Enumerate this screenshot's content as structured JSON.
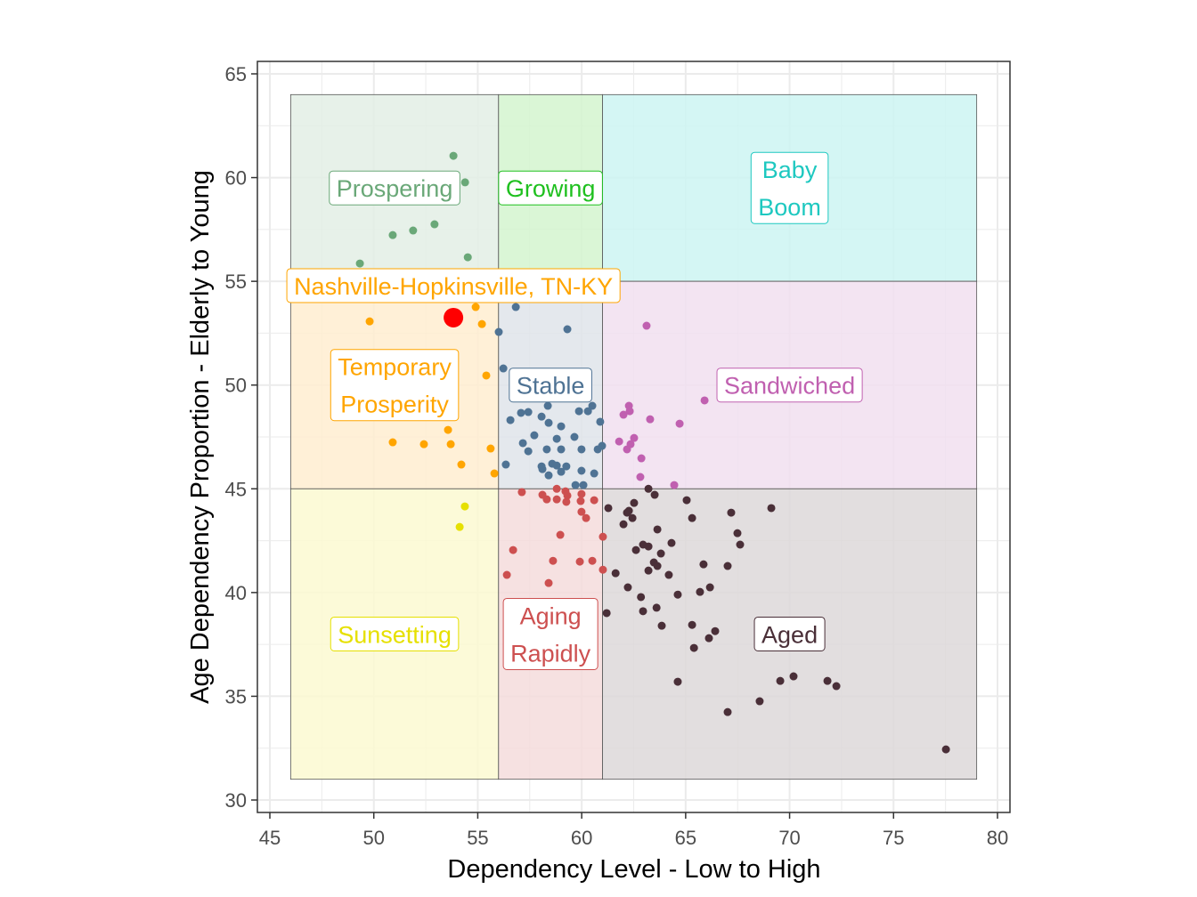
{
  "chart_data": {
    "type": "scatter",
    "xlabel": "Dependency Level - Low to High",
    "ylabel": "Age Dependency Proportion - Elderly to Young",
    "xlim": [
      44.4,
      80.6
    ],
    "ylim": [
      29.4,
      65.6
    ],
    "xticks": [
      45,
      50,
      55,
      60,
      65,
      70,
      75,
      80
    ],
    "yticks": [
      30,
      35,
      40,
      45,
      50,
      55,
      60,
      65
    ],
    "grid": true,
    "regions": [
      {
        "name": "Prospering",
        "x": [
          46,
          56
        ],
        "y": [
          55,
          64
        ],
        "fill": "#e3eee5",
        "color": "#6aa878",
        "label_lines": [
          "Prospering"
        ],
        "label_at": [
          51,
          59.5
        ]
      },
      {
        "name": "Growing",
        "x": [
          56,
          61
        ],
        "y": [
          55,
          64
        ],
        "fill": "#d4f4cf",
        "color": "#1fc01f",
        "label_lines": [
          "Growing"
        ],
        "label_at": [
          58.5,
          59.5
        ]
      },
      {
        "name": "Baby Boom",
        "x": [
          61,
          79
        ],
        "y": [
          55,
          64
        ],
        "fill": "#cdf4f2",
        "color": "#1ec8c0",
        "label_lines": [
          "Baby",
          "Boom"
        ],
        "label_at": [
          70,
          59.5
        ]
      },
      {
        "name": "Temporary Prosperity",
        "x": [
          46,
          56
        ],
        "y": [
          45,
          55
        ],
        "fill": "#ffedd0",
        "color": "#ffa500",
        "label_lines": [
          "Temporary",
          "Prosperity"
        ],
        "label_at": [
          51,
          50
        ]
      },
      {
        "name": "Stable",
        "x": [
          56,
          61
        ],
        "y": [
          45,
          55
        ],
        "fill": "#dfe4ea",
        "color": "#4f7394",
        "label_lines": [
          "Stable"
        ],
        "label_at": [
          58.5,
          50
        ]
      },
      {
        "name": "Sandwiched",
        "x": [
          61,
          79
        ],
        "y": [
          45,
          55
        ],
        "fill": "#f1dff0",
        "color": "#c060b0",
        "label_lines": [
          "Sandwiched"
        ],
        "label_at": [
          70,
          50
        ]
      },
      {
        "name": "Sunsetting",
        "x": [
          46,
          56
        ],
        "y": [
          31,
          45
        ],
        "fill": "#fcf9d1",
        "color": "#e6e000",
        "label_lines": [
          "Sunsetting"
        ],
        "label_at": [
          51,
          38
        ]
      },
      {
        "name": "Aging Rapidly",
        "x": [
          56,
          61
        ],
        "y": [
          31,
          45
        ],
        "fill": "#f4dcdc",
        "color": "#cd5050",
        "label_lines": [
          "Aging",
          "Rapidly"
        ],
        "label_at": [
          58.5,
          38
        ]
      },
      {
        "name": "Aged",
        "x": [
          61,
          79
        ],
        "y": [
          31,
          45
        ],
        "fill": "#ddd8d9",
        "color": "#4a2f38",
        "label_lines": [
          "Aged"
        ],
        "label_at": [
          70,
          38
        ]
      }
    ],
    "series": [
      {
        "group": "Prospering",
        "color": "#6aa878",
        "points": [
          [
            53.83,
            61.05
          ],
          [
            54.39,
            59.77
          ],
          [
            50.91,
            57.23
          ],
          [
            51.89,
            57.45
          ],
          [
            52.92,
            57.75
          ],
          [
            54.52,
            56.16
          ],
          [
            49.33,
            55.86
          ]
        ]
      },
      {
        "group": "Temporary Prosperity",
        "color": "#ffa500",
        "points": [
          [
            49.8,
            53.07
          ],
          [
            54.9,
            53.76
          ],
          [
            55.2,
            52.94
          ],
          [
            55.41,
            50.46
          ],
          [
            50.91,
            47.24
          ],
          [
            52.41,
            47.15
          ],
          [
            53.7,
            47.15
          ],
          [
            53.57,
            47.84
          ],
          [
            54.21,
            46.17
          ],
          [
            55.62,
            46.94
          ],
          [
            55.8,
            45.74
          ]
        ]
      },
      {
        "group": "Stable",
        "color": "#4f7394",
        "points": [
          [
            56.23,
            54.7
          ],
          [
            58.02,
            54.88
          ],
          [
            56.83,
            53.76
          ],
          [
            59.31,
            52.69
          ],
          [
            56.01,
            52.56
          ],
          [
            56.23,
            50.8
          ],
          [
            60.51,
            49.0
          ],
          [
            59.87,
            48.74
          ],
          [
            60.3,
            48.74
          ],
          [
            58.37,
            49.0
          ],
          [
            57.43,
            48.7
          ],
          [
            57.08,
            48.66
          ],
          [
            56.57,
            48.31
          ],
          [
            58.07,
            48.48
          ],
          [
            58.41,
            48.18
          ],
          [
            59.01,
            48.01
          ],
          [
            59.65,
            47.5
          ],
          [
            60.89,
            48.23
          ],
          [
            57.72,
            47.58
          ],
          [
            58.8,
            47.41
          ],
          [
            57.17,
            47.2
          ],
          [
            57.43,
            46.81
          ],
          [
            58.32,
            46.9
          ],
          [
            59.01,
            46.9
          ],
          [
            59.99,
            46.9
          ],
          [
            60.77,
            46.9
          ],
          [
            60.98,
            47.07
          ],
          [
            56.35,
            46.17
          ],
          [
            58.07,
            46.08
          ],
          [
            58.58,
            46.21
          ],
          [
            58.8,
            46.12
          ],
          [
            59.26,
            46.08
          ],
          [
            58.41,
            45.65
          ],
          [
            59.01,
            45.82
          ],
          [
            59.99,
            45.87
          ],
          [
            60.6,
            45.74
          ],
          [
            59.7,
            45.18
          ],
          [
            60.08,
            45.18
          ],
          [
            58.11,
            45.95
          ]
        ]
      },
      {
        "group": "Sandwiched",
        "color": "#c060b0",
        "points": [
          [
            63.12,
            52.86
          ],
          [
            65.91,
            49.26
          ],
          [
            64.71,
            48.14
          ],
          [
            63.29,
            48.35
          ],
          [
            62.31,
            48.74
          ],
          [
            62.27,
            49.0
          ],
          [
            62.01,
            48.57
          ],
          [
            62.52,
            47.45
          ],
          [
            61.8,
            47.28
          ],
          [
            62.18,
            46.9
          ],
          [
            62.35,
            47.15
          ],
          [
            62.87,
            46.47
          ],
          [
            62.82,
            45.57
          ],
          [
            64.45,
            45.18
          ]
        ]
      },
      {
        "group": "Aging Rapidly",
        "color": "#cd5050",
        "points": [
          [
            57.12,
            44.84
          ],
          [
            58.11,
            44.71
          ],
          [
            58.32,
            44.49
          ],
          [
            58.8,
            45.0
          ],
          [
            59.22,
            44.88
          ],
          [
            59.31,
            44.67
          ],
          [
            59.99,
            44.75
          ],
          [
            58.8,
            44.49
          ],
          [
            59.26,
            44.37
          ],
          [
            59.95,
            44.41
          ],
          [
            60.6,
            44.45
          ],
          [
            59.99,
            43.89
          ],
          [
            60.21,
            43.59
          ],
          [
            61.02,
            42.69
          ],
          [
            58.97,
            42.78
          ],
          [
            56.7,
            42.05
          ],
          [
            58.62,
            41.53
          ],
          [
            59.91,
            41.49
          ],
          [
            60.51,
            41.53
          ],
          [
            61.02,
            41.1
          ],
          [
            56.4,
            40.85
          ],
          [
            58.41,
            40.46
          ]
        ]
      },
      {
        "group": "Sunsetting",
        "color": "#e6e000",
        "points": [
          [
            54.38,
            44.15
          ],
          [
            54.13,
            43.16
          ]
        ]
      },
      {
        "group": "Aged",
        "color": "#4a2f38",
        "points": [
          [
            61.28,
            44.07
          ],
          [
            62.01,
            43.29
          ],
          [
            62.18,
            43.85
          ],
          [
            62.27,
            43.94
          ],
          [
            62.44,
            43.59
          ],
          [
            62.52,
            44.32
          ],
          [
            63.21,
            45.0
          ],
          [
            63.51,
            44.71
          ],
          [
            65.05,
            44.45
          ],
          [
            65.31,
            43.59
          ],
          [
            63.64,
            43.04
          ],
          [
            62.95,
            42.31
          ],
          [
            63.21,
            42.22
          ],
          [
            64.32,
            42.39
          ],
          [
            62.61,
            42.05
          ],
          [
            63.81,
            41.88
          ],
          [
            63.47,
            41.45
          ],
          [
            63.64,
            41.28
          ],
          [
            63.21,
            41.06
          ],
          [
            64.19,
            40.85
          ],
          [
            65.86,
            41.36
          ],
          [
            67.02,
            41.28
          ],
          [
            66.17,
            40.25
          ],
          [
            65.69,
            40.03
          ],
          [
            67.49,
            42.86
          ],
          [
            67.62,
            42.31
          ],
          [
            67.19,
            43.85
          ],
          [
            69.12,
            44.07
          ],
          [
            64.62,
            39.9
          ],
          [
            62.22,
            40.25
          ],
          [
            62.85,
            39.78
          ],
          [
            63.6,
            39.27
          ],
          [
            62.95,
            39.1
          ],
          [
            61.2,
            39.01
          ],
          [
            61.63,
            40.93
          ],
          [
            63.85,
            38.4
          ],
          [
            65.31,
            38.44
          ],
          [
            66.42,
            38.14
          ],
          [
            66.12,
            37.8
          ],
          [
            65.4,
            37.33
          ],
          [
            64.62,
            35.7
          ],
          [
            67.02,
            34.24
          ],
          [
            68.56,
            34.76
          ],
          [
            69.55,
            35.74
          ],
          [
            70.19,
            35.96
          ],
          [
            71.82,
            35.74
          ],
          [
            72.25,
            35.49
          ],
          [
            77.52,
            32.44
          ]
        ]
      }
    ],
    "highlight": {
      "label": "Nashville-Hopkinsville, TN-KY",
      "point": [
        53.83,
        53.25
      ],
      "label_at": [
        53.65,
        51.6
      ],
      "color": "#ff0000",
      "label_color": "#ffa500"
    }
  }
}
